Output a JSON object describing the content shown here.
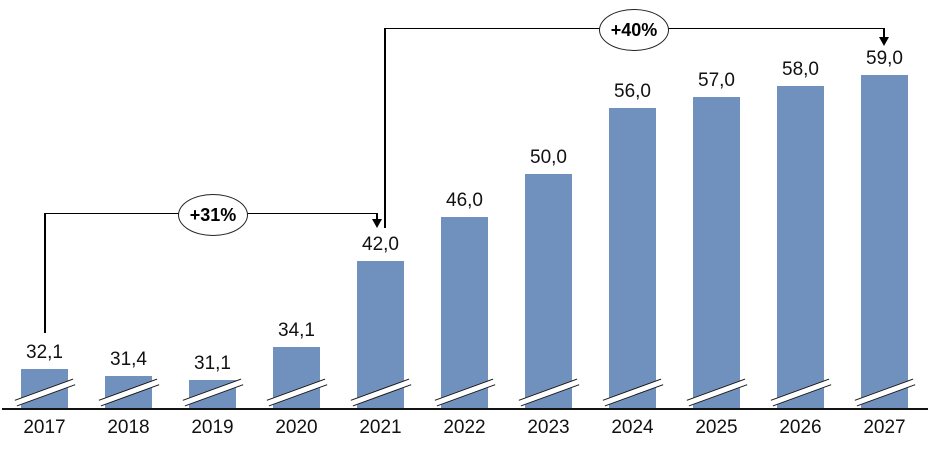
{
  "chart_data": {
    "type": "bar",
    "title": "",
    "categories": [
      "2017",
      "2018",
      "2019",
      "2020",
      "2021",
      "2022",
      "2023",
      "2024",
      "2025",
      "2026",
      "2027"
    ],
    "values": [
      32.1,
      31.4,
      31.1,
      34.1,
      42.0,
      46.0,
      50.0,
      56.0,
      57.0,
      58.0,
      59.0
    ],
    "value_labels": [
      "32,1",
      "31,4",
      "31,1",
      "34,1",
      "42,0",
      "46,0",
      "50,0",
      "56,0",
      "57,0",
      "58,0",
      "59,0"
    ],
    "decimal_separator": ",",
    "bar_color": "#7090BE",
    "axis_color": "#141414",
    "text_color": "#111111",
    "axis_break": true,
    "y_axis_visible": false,
    "gridlines": false,
    "baseline_value_at_break": 28.4,
    "annotations": [
      {
        "label": "+31%",
        "from": "2017",
        "to": "2021"
      },
      {
        "label": "+40%",
        "from": "2021",
        "to": "2027"
      }
    ]
  }
}
